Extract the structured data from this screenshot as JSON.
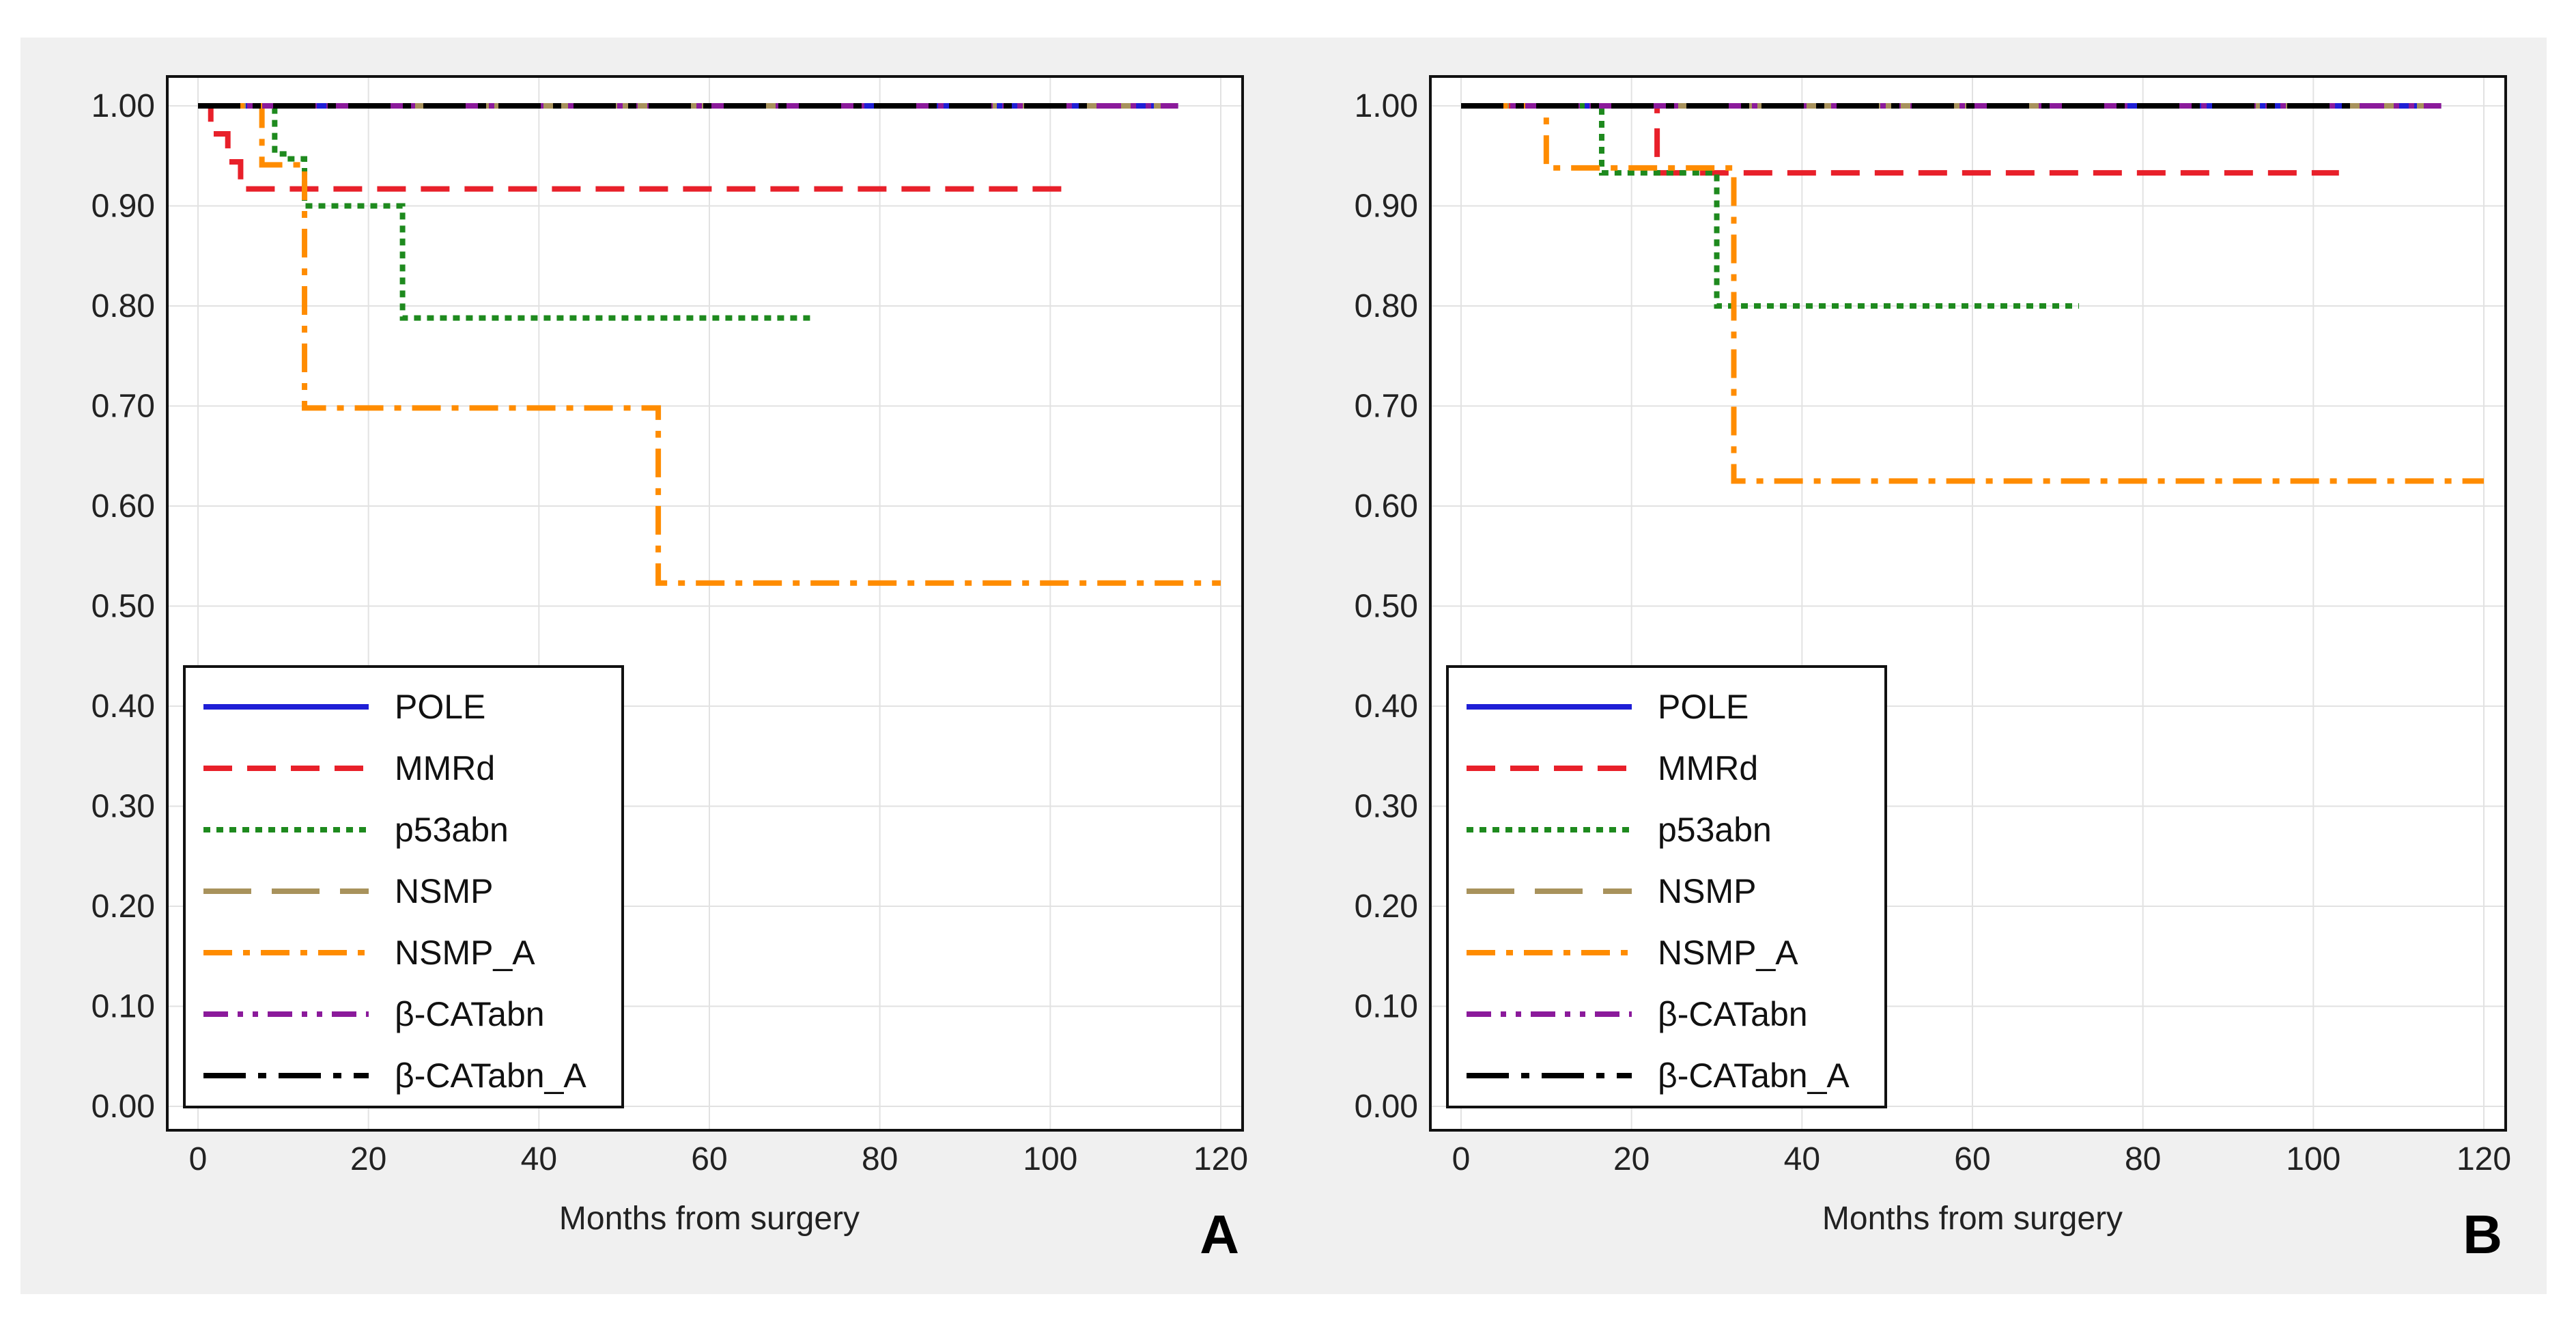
{
  "chart_data": [
    {
      "type": "line",
      "subtype": "kaplan-meier",
      "panel_label": "A",
      "xlabel": "Months from surgery",
      "ylabel": "",
      "xlim": [
        0,
        120
      ],
      "ylim": [
        0,
        1
      ],
      "xticks": [
        "0",
        "20",
        "40",
        "60",
        "80",
        "100",
        "120"
      ],
      "yticks": [
        "0.00",
        "0.10",
        "0.20",
        "0.30",
        "0.40",
        "0.50",
        "0.60",
        "0.70",
        "0.80",
        "0.90",
        "1.00"
      ],
      "grid": true,
      "legend_position": "bottom-left",
      "series": [
        {
          "name": "POLE",
          "color": "#1f1fd6",
          "style": "solid",
          "x": [
            0,
            115
          ],
          "y": [
            1.0,
            1.0
          ]
        },
        {
          "name": "MMRd",
          "color": "#e8202a",
          "style": "dashed",
          "x": [
            0,
            1.5,
            3.5,
            5,
            103
          ],
          "y": [
            1.0,
            0.972,
            0.944,
            0.917,
            0.917
          ]
        },
        {
          "name": "p53abn",
          "color": "#1e8a1e",
          "style": "dotted",
          "x": [
            0,
            9,
            10.5,
            12.5,
            24,
            72.5
          ],
          "y": [
            1.0,
            0.952,
            0.947,
            0.9,
            0.788,
            0.788
          ]
        },
        {
          "name": "NSMP",
          "color": "#a8925c",
          "style": "longdash",
          "x": [
            0,
            115
          ],
          "y": [
            1.0,
            1.0
          ]
        },
        {
          "name": "NSMP_A",
          "color": "#ff8c00",
          "style": "dashdot",
          "x": [
            0,
            7.5,
            12.5,
            54,
            120
          ],
          "y": [
            1.0,
            0.941,
            0.698,
            0.523,
            0.523
          ]
        },
        {
          "name": "β-CATabn",
          "color": "#8b1a9b",
          "style": "dashdotdot",
          "x": [
            0,
            115
          ],
          "y": [
            1.0,
            1.0
          ]
        },
        {
          "name": "β-CATabn_A",
          "color": "#000000",
          "style": "longdashdot",
          "x": [
            0,
            105
          ],
          "y": [
            1.0,
            1.0
          ]
        }
      ]
    },
    {
      "type": "line",
      "subtype": "kaplan-meier",
      "panel_label": "B",
      "xlabel": "Months from surgery",
      "ylabel": "",
      "xlim": [
        0,
        120
      ],
      "ylim": [
        0,
        1
      ],
      "xticks": [
        "0",
        "20",
        "40",
        "60",
        "80",
        "100",
        "120"
      ],
      "yticks": [
        "0.00",
        "0.10",
        "0.20",
        "0.30",
        "0.40",
        "0.50",
        "0.60",
        "0.70",
        "0.80",
        "0.90",
        "1.00"
      ],
      "grid": true,
      "legend_position": "bottom-left",
      "series": [
        {
          "name": "POLE",
          "color": "#1f1fd6",
          "style": "solid",
          "x": [
            0,
            115
          ],
          "y": [
            1.0,
            1.0
          ]
        },
        {
          "name": "MMRd",
          "color": "#e8202a",
          "style": "dashed",
          "x": [
            0,
            23,
            103
          ],
          "y": [
            1.0,
            0.933,
            0.933
          ]
        },
        {
          "name": "p53abn",
          "color": "#1e8a1e",
          "style": "dotted",
          "x": [
            0,
            16.5,
            30,
            72.5
          ],
          "y": [
            1.0,
            0.933,
            0.8,
            0.8
          ]
        },
        {
          "name": "NSMP",
          "color": "#a8925c",
          "style": "longdash",
          "x": [
            0,
            115
          ],
          "y": [
            1.0,
            1.0
          ]
        },
        {
          "name": "NSMP_A",
          "color": "#ff8c00",
          "style": "dashdot",
          "x": [
            0,
            10,
            32,
            120
          ],
          "y": [
            1.0,
            0.938,
            0.625,
            0.625
          ]
        },
        {
          "name": "β-CATabn",
          "color": "#8b1a9b",
          "style": "dashdotdot",
          "x": [
            0,
            115
          ],
          "y": [
            1.0,
            1.0
          ]
        },
        {
          "name": "β-CATabn_A",
          "color": "#000000",
          "style": "longdashdot",
          "x": [
            0,
            105
          ],
          "y": [
            1.0,
            1.0
          ]
        }
      ]
    }
  ]
}
